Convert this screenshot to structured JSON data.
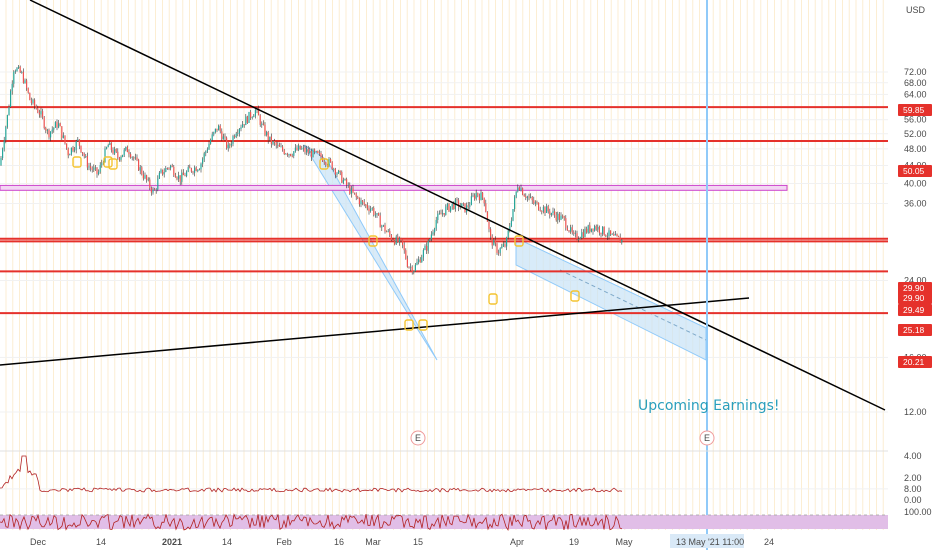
{
  "chart_data": {
    "type": "candlestick",
    "currency": "USD",
    "title": "",
    "price_axis": {
      "ticks": [
        "72.00",
        "68.00",
        "64.00",
        "56.00",
        "52.00",
        "48.00",
        "44.00",
        "40.00",
        "36.00",
        "24.00",
        "16.00",
        "12.00",
        "8.00"
      ],
      "scale": "log"
    },
    "time_axis": {
      "ticks": [
        "Dec",
        "14",
        "2021",
        "14",
        "Feb",
        "16",
        "Mar",
        "15",
        "Apr",
        "19",
        "May",
        "24"
      ],
      "cursor_label": "13 May '21",
      "cursor_time": "11:00"
    },
    "horizontal_levels": [
      {
        "label": "59.85",
        "value": 59.85,
        "color": "#e5312b"
      },
      {
        "label": "50.05",
        "value": 50.05,
        "color": "#e5312b"
      },
      {
        "label": "29.90",
        "value": 29.9,
        "color": "#e5312b"
      },
      {
        "label": "29.90",
        "value": 29.9,
        "color": "#e5312b"
      },
      {
        "label": "29.49",
        "value": 29.49,
        "color": "#e5312b"
      },
      {
        "label": "25.18",
        "value": 25.18,
        "color": "#e5312b"
      },
      {
        "label": "20.21",
        "value": 20.21,
        "color": "#e5312b"
      }
    ],
    "resistance_zone": {
      "from": 38.6,
      "to": 39.6,
      "color": "#cc44cc"
    },
    "earnings_markers": [
      {
        "symbol": "E"
      },
      {
        "symbol": "E"
      }
    ],
    "annotation": "Upcoming Earnings!",
    "lower_panel": {
      "ticks": [
        "4.00",
        "2.00",
        "0.00"
      ],
      "series_color": "#b22222"
    },
    "oscillator_panel": {
      "ticks": [
        "100.00"
      ],
      "band_color": "#e1bee7",
      "series_color": "#b22222"
    },
    "colors": {
      "up": "#26a69a",
      "down": "#ef5350",
      "wick": "#333333",
      "channel": "#90caf9",
      "trend": "#000000",
      "cursor": "#90caf9",
      "annotation": "#2a9fbc"
    }
  }
}
